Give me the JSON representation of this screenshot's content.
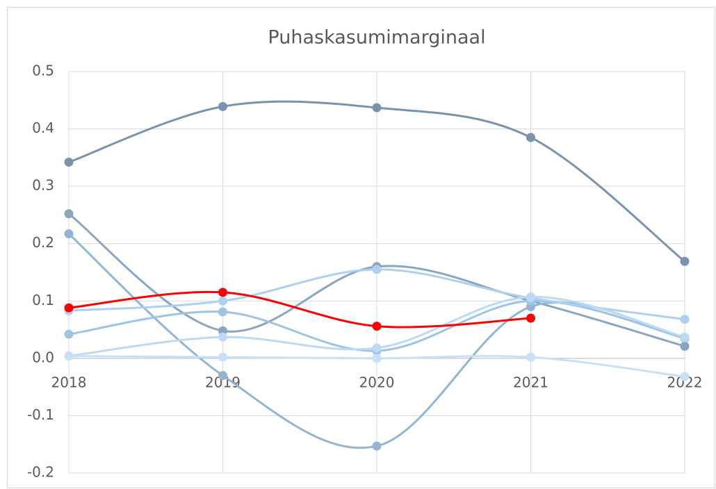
{
  "chart_data": {
    "type": "line",
    "title": "Puhaskasumimarginaal",
    "categories": [
      "2018",
      "2019",
      "2020",
      "2021",
      "2022"
    ],
    "series": [
      {
        "color": "#7893ab",
        "values": [
          0.342,
          0.439,
          0.437,
          0.385,
          0.169
        ]
      },
      {
        "color": "#88a6c0",
        "values": [
          0.252,
          0.048,
          0.16,
          0.1,
          0.021
        ]
      },
      {
        "color": "#93b5d3",
        "values": [
          0.217,
          -0.03,
          -0.153,
          0.09,
          0.035
        ]
      },
      {
        "color": "#9fc3e3",
        "values": [
          0.042,
          0.081,
          0.013,
          0.1,
          0.035
        ]
      },
      {
        "color": "#aed0ef",
        "values": [
          0.083,
          0.1,
          0.155,
          0.105,
          0.068
        ]
      },
      {
        "color": "#bcdaf5",
        "values": [
          0.004,
          0.037,
          0.018,
          0.107,
          0.037
        ]
      },
      {
        "color": "#c7e0f7",
        "values": [
          0.004,
          0.002,
          0.0,
          0.002,
          -0.032
        ]
      },
      {
        "color": "#ff0000",
        "values": [
          0.088,
          0.115,
          0.056,
          0.07,
          null
        ]
      }
    ],
    "ylim": [
      -0.2,
      0.5
    ],
    "yticks": [
      -0.2,
      -0.1,
      {
        "value": 0,
        "label": "0.0"
      },
      0.1,
      0.2,
      0.3,
      0.4,
      0.5
    ],
    "grid": true,
    "smooth": true
  }
}
